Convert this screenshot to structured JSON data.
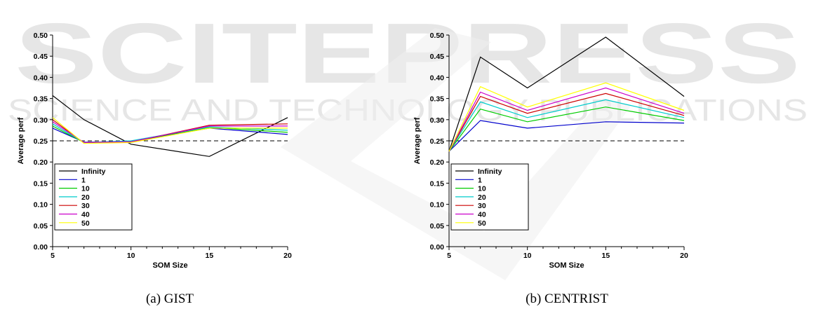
{
  "watermark": {
    "line1": "SCITEPRESS",
    "line2": "SCIENCE AND TECHNOLOGY PUBLICATIONS"
  },
  "captions": {
    "a": "(a) GIST",
    "b": "(b) CENTRIST"
  },
  "series_colors": {
    "Infinity": "#000000",
    "1": "#0000cc",
    "10": "#00cc00",
    "20": "#00cccc",
    "30": "#cc0000",
    "40": "#cc00cc",
    "50": "#ffff00"
  },
  "chart_data": [
    {
      "type": "line",
      "xlabel": "SOM Size",
      "ylabel": "Average perf",
      "xlim": [
        5,
        20
      ],
      "ylim": [
        0,
        0.5
      ],
      "xticks": [
        "5",
        "10",
        "15",
        "20"
      ],
      "yticks": [
        "0.00",
        "0.05",
        "0.10",
        "0.15",
        "0.20",
        "0.25",
        "0.30",
        "0.35",
        "0.40",
        "0.45",
        "0.50"
      ],
      "reference_line": 0.25,
      "legend_position": "bottom-left",
      "x": [
        5,
        7,
        10,
        15,
        20
      ],
      "series": [
        {
          "name": "Infinity",
          "values": [
            0.357,
            0.3,
            0.242,
            0.213,
            0.305
          ]
        },
        {
          "name": "1",
          "values": [
            0.28,
            0.247,
            0.248,
            0.28,
            0.265
          ]
        },
        {
          "name": "10",
          "values": [
            0.285,
            0.246,
            0.249,
            0.282,
            0.27
          ]
        },
        {
          "name": "20",
          "values": [
            0.29,
            0.246,
            0.25,
            0.283,
            0.275
          ]
        },
        {
          "name": "30",
          "values": [
            0.3,
            0.245,
            0.247,
            0.287,
            0.29
          ]
        },
        {
          "name": "40",
          "values": [
            0.295,
            0.246,
            0.248,
            0.285,
            0.285
          ]
        },
        {
          "name": "50",
          "values": [
            0.305,
            0.244,
            0.246,
            0.28,
            0.28
          ]
        }
      ]
    },
    {
      "type": "line",
      "xlabel": "SOM Size",
      "ylabel": "Average perf",
      "xlim": [
        5,
        20
      ],
      "ylim": [
        0,
        0.5
      ],
      "xticks": [
        "5",
        "10",
        "15",
        "20"
      ],
      "yticks": [
        "0.00",
        "0.05",
        "0.10",
        "0.15",
        "0.20",
        "0.25",
        "0.30",
        "0.35",
        "0.40",
        "0.45",
        "0.50"
      ],
      "reference_line": 0.25,
      "legend_position": "bottom-left",
      "x": [
        5,
        7,
        10,
        15,
        20
      ],
      "series": [
        {
          "name": "Infinity",
          "values": [
            0.225,
            0.448,
            0.375,
            0.495,
            0.355
          ]
        },
        {
          "name": "1",
          "values": [
            0.225,
            0.298,
            0.28,
            0.295,
            0.292
          ]
        },
        {
          "name": "10",
          "values": [
            0.225,
            0.325,
            0.295,
            0.33,
            0.298
          ]
        },
        {
          "name": "20",
          "values": [
            0.225,
            0.342,
            0.305,
            0.347,
            0.305
          ]
        },
        {
          "name": "30",
          "values": [
            0.225,
            0.355,
            0.315,
            0.362,
            0.31
          ]
        },
        {
          "name": "40",
          "values": [
            0.225,
            0.365,
            0.322,
            0.375,
            0.315
          ]
        },
        {
          "name": "50",
          "values": [
            0.225,
            0.378,
            0.33,
            0.387,
            0.322
          ]
        }
      ]
    }
  ]
}
